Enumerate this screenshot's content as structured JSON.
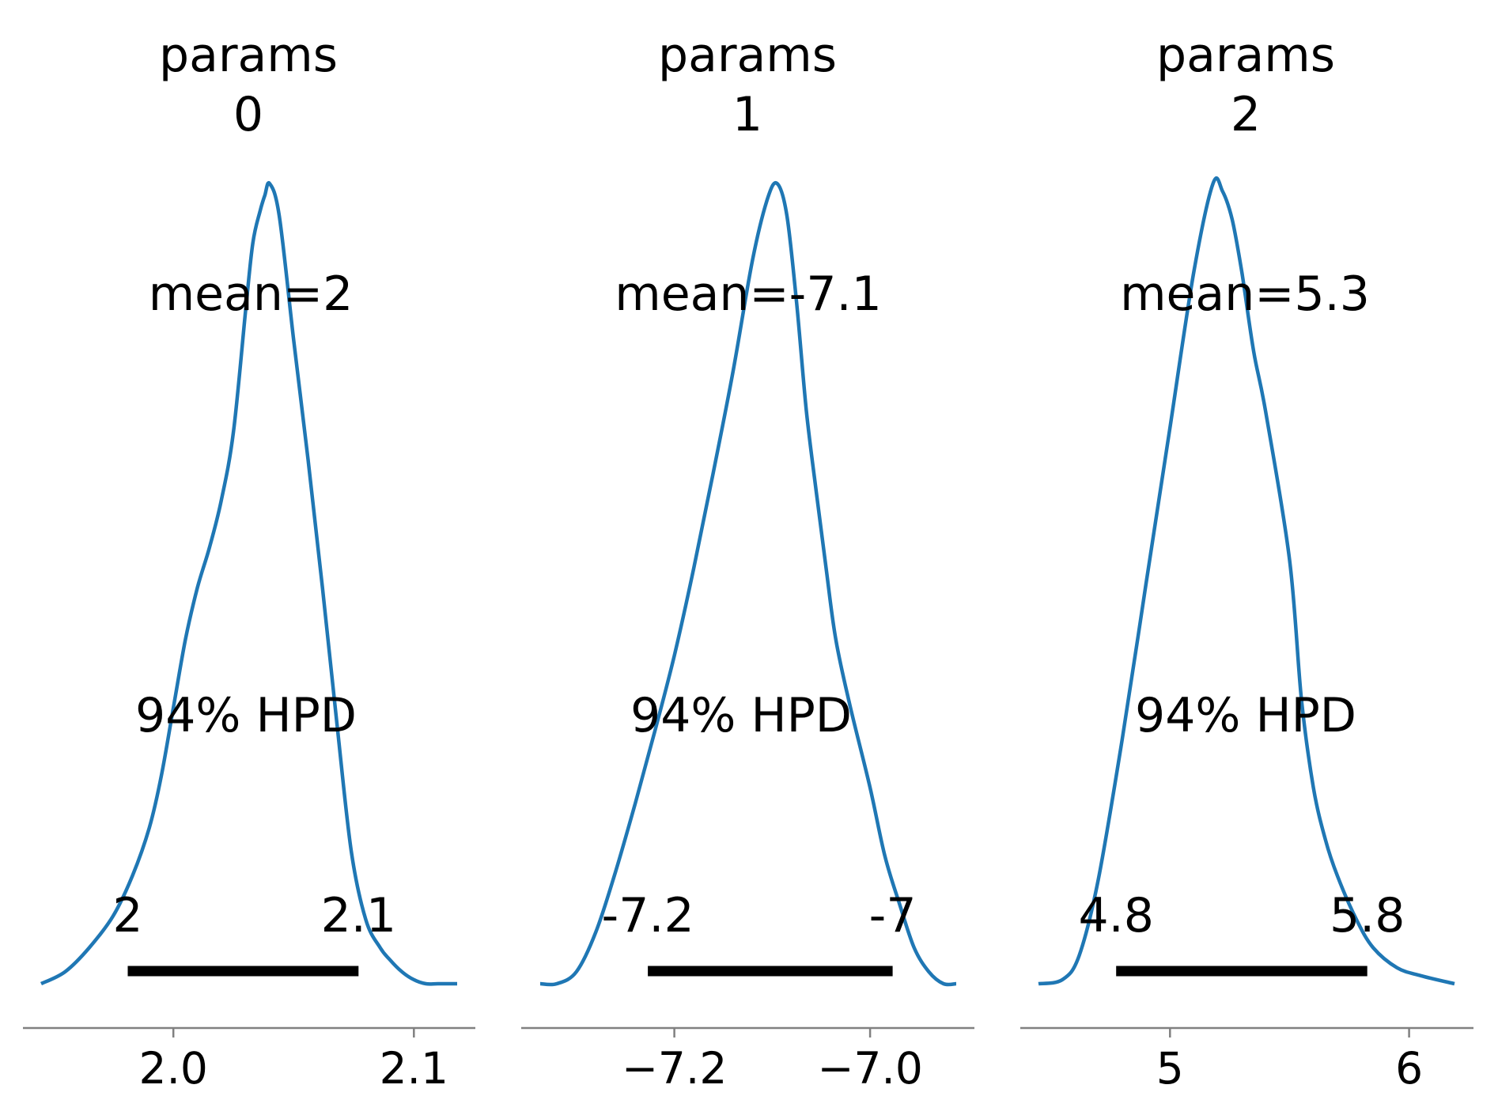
{
  "chart_data": [
    {
      "type": "density",
      "title_line1": "params",
      "title_line2": "0",
      "mean_label": "mean=2",
      "hpd_label": "94% HPD",
      "hpd_low_label": "2",
      "hpd_high_label": "2.1",
      "hpd": [
        1.981,
        2.077
      ],
      "xlim": [
        1.945,
        2.118
      ],
      "xticks": [
        2.0,
        2.1
      ],
      "xtick_labels": [
        "2.0",
        "2.1"
      ],
      "curve_color": "#1f77b4",
      "density_x": [
        1.945,
        1.955,
        1.965,
        1.975,
        1.983,
        1.99,
        1.995,
        2.0,
        2.005,
        2.01,
        2.015,
        2.02,
        2.025,
        2.03,
        2.033,
        2.036,
        2.038,
        2.04,
        2.044,
        2.05,
        2.056,
        2.062,
        2.068,
        2.074,
        2.08,
        2.086,
        2.09,
        2.095,
        2.1,
        2.105,
        2.11,
        2.118
      ],
      "density_y": [
        0.0,
        0.03,
        0.09,
        0.17,
        0.27,
        0.39,
        0.52,
        0.69,
        0.86,
        0.99,
        1.09,
        1.21,
        1.38,
        1.68,
        1.85,
        1.93,
        1.97,
        2.0,
        1.92,
        1.61,
        1.31,
        0.99,
        0.65,
        0.33,
        0.16,
        0.09,
        0.06,
        0.03,
        0.01,
        0.0,
        0.0,
        0.0
      ]
    },
    {
      "type": "density",
      "title_line1": "params",
      "title_line2": "1",
      "mean_label": "mean=-7.1",
      "hpd_label": "94% HPD",
      "hpd_low_label": "-7.2",
      "hpd_high_label": "-7",
      "hpd": [
        -7.227,
        -6.977
      ],
      "xlim": [
        -7.337,
        -6.912
      ],
      "xticks": [
        -7.2,
        -7.0
      ],
      "xtick_labels": [
        "−7.2",
        "−7.0"
      ],
      "curve_color": "#1f77b4",
      "density_x": [
        -7.337,
        -7.32,
        -7.3,
        -7.28,
        -7.26,
        -7.24,
        -7.22,
        -7.2,
        -7.18,
        -7.16,
        -7.14,
        -7.12,
        -7.105,
        -7.095,
        -7.085,
        -7.075,
        -7.065,
        -7.055,
        -7.045,
        -7.035,
        -7.02,
        -7.0,
        -6.985,
        -6.97,
        -6.955,
        -6.94,
        -6.925,
        -6.912
      ],
      "density_y": [
        0.0,
        0.0,
        0.03,
        0.13,
        0.28,
        0.45,
        0.63,
        0.82,
        1.04,
        1.28,
        1.53,
        1.81,
        1.96,
        2.0,
        1.92,
        1.7,
        1.43,
        1.23,
        1.04,
        0.86,
        0.69,
        0.49,
        0.32,
        0.2,
        0.09,
        0.03,
        0.0,
        0.0
      ]
    },
    {
      "type": "density",
      "title_line1": "params",
      "title_line2": "2",
      "mean_label": "mean=5.3",
      "hpd_label": "94% HPD",
      "hpd_low_label": "4.8",
      "hpd_high_label": "5.8",
      "hpd": [
        4.775,
        5.825
      ],
      "xlim": [
        4.45,
        6.19
      ],
      "xticks": [
        5,
        6
      ],
      "xtick_labels": [
        "5",
        "6"
      ],
      "curve_color": "#1f77b4",
      "density_x": [
        4.45,
        4.55,
        4.62,
        4.7,
        4.8,
        4.9,
        5.0,
        5.1,
        5.18,
        5.22,
        5.26,
        5.3,
        5.35,
        5.4,
        5.5,
        5.55,
        5.6,
        5.65,
        5.7,
        5.78,
        5.85,
        5.95,
        6.05,
        6.19
      ],
      "density_y": [
        0.0,
        0.01,
        0.07,
        0.26,
        0.61,
        1.0,
        1.39,
        1.78,
        2.0,
        1.98,
        1.91,
        1.78,
        1.58,
        1.43,
        1.06,
        0.71,
        0.49,
        0.36,
        0.27,
        0.16,
        0.09,
        0.04,
        0.02,
        0.0
      ]
    }
  ]
}
